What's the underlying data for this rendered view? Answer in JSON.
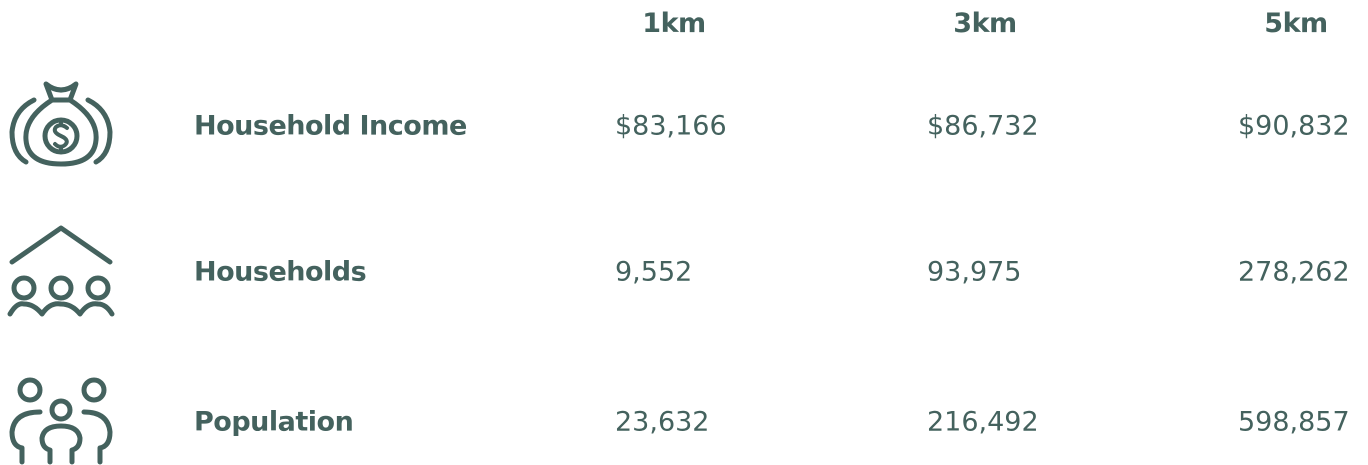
{
  "table": {
    "columns": [
      "1km",
      "3km",
      "5km"
    ],
    "rows": [
      {
        "label": "Household Income",
        "values": [
          "$83,166",
          "$86,732",
          "$90,832"
        ]
      },
      {
        "label": "Households",
        "values": [
          "9,552",
          "93,975",
          "278,262"
        ]
      },
      {
        "label": "Population",
        "values": [
          "23,632",
          "216,492",
          "598,857"
        ]
      }
    ]
  }
}
